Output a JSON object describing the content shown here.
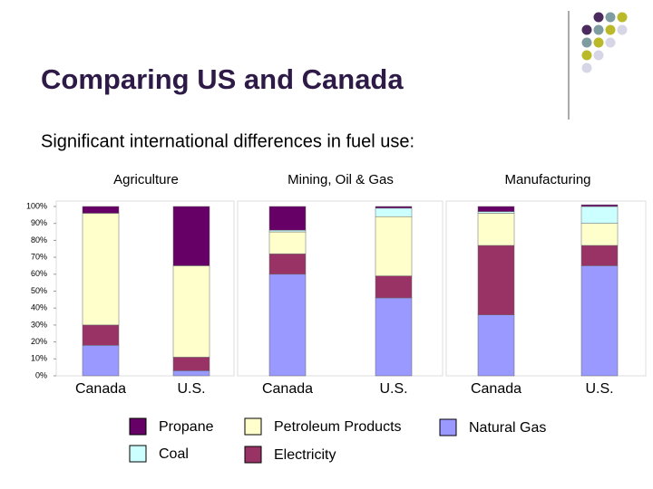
{
  "title": "Comparing US and Canada",
  "subtitle": "Significant international differences in fuel use:",
  "legend": [
    {
      "name": "Natural Gas",
      "color": "#9999ff"
    },
    {
      "name": "Electricity",
      "color": "#993366"
    },
    {
      "name": "Petroleum Products",
      "color": "#ffffcc"
    },
    {
      "name": "Coal",
      "color": "#ccffff"
    },
    {
      "name": "Propane",
      "color": "#660066"
    }
  ],
  "chart_data": [
    {
      "type": "stacked-bar",
      "title": "Agriculture",
      "categories": [
        "Canada",
        "U.S."
      ],
      "series": [
        {
          "values": [
            18,
            3
          ]
        },
        {
          "values": [
            12,
            8
          ]
        },
        {
          "values": [
            66,
            54
          ]
        },
        {
          "values": [
            0,
            0
          ]
        },
        {
          "values": [
            4,
            35
          ]
        }
      ],
      "ylim": [
        0,
        100
      ],
      "yticks": [
        {
          "value": 0,
          "label": "0%"
        },
        {
          "value": 10,
          "label": "10%"
        },
        {
          "value": 20,
          "label": "20%"
        },
        {
          "value": 30,
          "label": "30%"
        },
        {
          "value": 40,
          "label": "40%"
        },
        {
          "value": 50,
          "label": "50%"
        },
        {
          "value": 60,
          "label": "60%"
        },
        {
          "value": 70,
          "label": "70%"
        },
        {
          "value": 80,
          "label": "80%"
        },
        {
          "value": 90,
          "label": "90%"
        },
        {
          "value": 100,
          "label": "100%"
        }
      ]
    },
    {
      "type": "stacked-bar",
      "title": "Mining, Oil & Gas",
      "categories": [
        "Canada",
        "U.S."
      ],
      "series": [
        {
          "values": [
            60,
            46
          ]
        },
        {
          "values": [
            12,
            13
          ]
        },
        {
          "values": [
            13,
            35
          ]
        },
        {
          "values": [
            1,
            5
          ]
        },
        {
          "values": [
            14,
            1
          ]
        }
      ],
      "ylim": [
        0,
        100
      ]
    },
    {
      "type": "stacked-bar",
      "title": "Manufacturing",
      "categories": [
        "Canada",
        "U.S."
      ],
      "series": [
        {
          "values": [
            36,
            65
          ]
        },
        {
          "values": [
            41,
            12
          ]
        },
        {
          "values": [
            19,
            13
          ]
        },
        {
          "values": [
            1,
            10
          ]
        },
        {
          "values": [
            3,
            1
          ]
        }
      ],
      "ylim": [
        0,
        100
      ]
    }
  ]
}
